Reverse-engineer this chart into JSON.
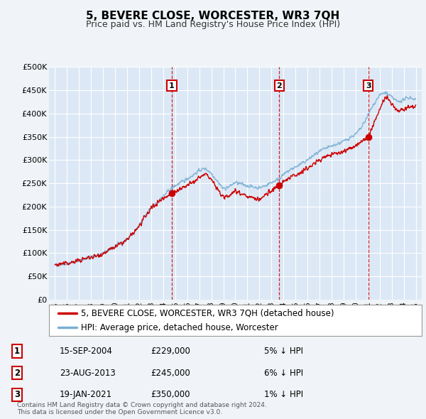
{
  "title": "5, BEVERE CLOSE, WORCESTER, WR3 7QH",
  "subtitle": "Price paid vs. HM Land Registry's House Price Index (HPI)",
  "background_color": "#f0f4f8",
  "plot_bg_color": "#dce8f5",
  "grid_color": "#ffffff",
  "hpi_line_color": "#7aafd4",
  "price_line_color": "#cc0000",
  "purchases": [
    {
      "date_x": 2004.71,
      "price": 229000,
      "label": "1"
    },
    {
      "date_x": 2013.65,
      "price": 245000,
      "label": "2"
    },
    {
      "date_x": 2021.05,
      "price": 350000,
      "label": "3"
    }
  ],
  "purchase_info": [
    {
      "num": "1",
      "date": "15-SEP-2004",
      "price": "£229,000",
      "pct": "5% ↓ HPI"
    },
    {
      "num": "2",
      "date": "23-AUG-2013",
      "price": "£245,000",
      "pct": "6% ↓ HPI"
    },
    {
      "num": "3",
      "date": "19-JAN-2021",
      "price": "£350,000",
      "pct": "1% ↓ HPI"
    }
  ],
  "legend_entries": [
    "5, BEVERE CLOSE, WORCESTER, WR3 7QH (detached house)",
    "HPI: Average price, detached house, Worcester"
  ],
  "footer": "Contains HM Land Registry data © Crown copyright and database right 2024.\nThis data is licensed under the Open Government Licence v3.0.",
  "ylim": [
    0,
    500000
  ],
  "yticks": [
    0,
    50000,
    100000,
    150000,
    200000,
    250000,
    300000,
    350000,
    400000,
    450000,
    500000
  ],
  "xlim": [
    1994.5,
    2025.5
  ],
  "xticks": [
    1995,
    1996,
    1997,
    1998,
    1999,
    2000,
    2001,
    2002,
    2003,
    2004,
    2005,
    2006,
    2007,
    2008,
    2009,
    2010,
    2011,
    2012,
    2013,
    2014,
    2015,
    2016,
    2017,
    2018,
    2019,
    2020,
    2021,
    2022,
    2023,
    2024,
    2025
  ],
  "hpi_points": [
    [
      1995.0,
      75000
    ],
    [
      1995.5,
      76000
    ],
    [
      1996.0,
      78000
    ],
    [
      1996.5,
      80000
    ],
    [
      1997.0,
      84000
    ],
    [
      1997.5,
      88000
    ],
    [
      1998.0,
      92000
    ],
    [
      1998.5,
      95000
    ],
    [
      1999.0,
      100000
    ],
    [
      1999.5,
      107000
    ],
    [
      2000.0,
      115000
    ],
    [
      2000.5,
      122000
    ],
    [
      2001.0,
      130000
    ],
    [
      2001.5,
      143000
    ],
    [
      2002.0,
      160000
    ],
    [
      2002.5,
      180000
    ],
    [
      2003.0,
      198000
    ],
    [
      2003.5,
      210000
    ],
    [
      2004.0,
      222000
    ],
    [
      2004.5,
      235000
    ],
    [
      2005.0,
      245000
    ],
    [
      2005.5,
      252000
    ],
    [
      2006.0,
      260000
    ],
    [
      2006.5,
      268000
    ],
    [
      2007.0,
      278000
    ],
    [
      2007.5,
      282000
    ],
    [
      2008.0,
      272000
    ],
    [
      2008.5,
      255000
    ],
    [
      2009.0,
      238000
    ],
    [
      2009.5,
      243000
    ],
    [
      2010.0,
      252000
    ],
    [
      2010.5,
      248000
    ],
    [
      2011.0,
      245000
    ],
    [
      2011.5,
      242000
    ],
    [
      2012.0,
      240000
    ],
    [
      2012.5,
      245000
    ],
    [
      2013.0,
      252000
    ],
    [
      2013.5,
      258000
    ],
    [
      2014.0,
      268000
    ],
    [
      2014.5,
      278000
    ],
    [
      2015.0,
      285000
    ],
    [
      2015.5,
      292000
    ],
    [
      2016.0,
      300000
    ],
    [
      2016.5,
      310000
    ],
    [
      2017.0,
      318000
    ],
    [
      2017.5,
      325000
    ],
    [
      2018.0,
      330000
    ],
    [
      2018.5,
      335000
    ],
    [
      2019.0,
      340000
    ],
    [
      2019.5,
      348000
    ],
    [
      2020.0,
      355000
    ],
    [
      2020.5,
      370000
    ],
    [
      2021.0,
      395000
    ],
    [
      2021.5,
      420000
    ],
    [
      2022.0,
      440000
    ],
    [
      2022.5,
      445000
    ],
    [
      2023.0,
      435000
    ],
    [
      2023.5,
      425000
    ],
    [
      2024.0,
      430000
    ],
    [
      2024.5,
      435000
    ],
    [
      2025.0,
      430000
    ]
  ],
  "price_points": [
    [
      1995.0,
      75000
    ],
    [
      1995.5,
      76500
    ],
    [
      1996.0,
      78000
    ],
    [
      1996.5,
      80500
    ],
    [
      1997.0,
      84000
    ],
    [
      1997.5,
      88000
    ],
    [
      1998.0,
      91000
    ],
    [
      1998.5,
      94000
    ],
    [
      1999.0,
      99000
    ],
    [
      1999.5,
      106000
    ],
    [
      2000.0,
      113000
    ],
    [
      2000.5,
      120000
    ],
    [
      2001.0,
      128000
    ],
    [
      2001.5,
      142000
    ],
    [
      2002.0,
      158000
    ],
    [
      2002.5,
      177000
    ],
    [
      2003.0,
      196000
    ],
    [
      2003.5,
      208000
    ],
    [
      2004.0,
      218000
    ],
    [
      2004.71,
      229000
    ],
    [
      2005.0,
      232000
    ],
    [
      2005.5,
      238000
    ],
    [
      2006.0,
      245000
    ],
    [
      2006.5,
      252000
    ],
    [
      2007.0,
      262000
    ],
    [
      2007.5,
      270000
    ],
    [
      2008.0,
      258000
    ],
    [
      2008.5,
      238000
    ],
    [
      2009.0,
      218000
    ],
    [
      2009.5,
      225000
    ],
    [
      2010.0,
      235000
    ],
    [
      2010.5,
      228000
    ],
    [
      2011.0,
      222000
    ],
    [
      2011.5,
      218000
    ],
    [
      2012.0,
      215000
    ],
    [
      2012.5,
      225000
    ],
    [
      2013.0,
      235000
    ],
    [
      2013.65,
      245000
    ],
    [
      2014.0,
      252000
    ],
    [
      2014.5,
      262000
    ],
    [
      2015.0,
      268000
    ],
    [
      2015.5,
      275000
    ],
    [
      2016.0,
      282000
    ],
    [
      2016.5,
      292000
    ],
    [
      2017.0,
      300000
    ],
    [
      2017.5,
      308000
    ],
    [
      2018.0,
      312000
    ],
    [
      2018.5,
      315000
    ],
    [
      2019.0,
      318000
    ],
    [
      2019.5,
      325000
    ],
    [
      2020.0,
      330000
    ],
    [
      2020.5,
      340000
    ],
    [
      2021.05,
      350000
    ],
    [
      2021.5,
      378000
    ],
    [
      2022.0,
      410000
    ],
    [
      2022.5,
      435000
    ],
    [
      2023.0,
      420000
    ],
    [
      2023.5,
      405000
    ],
    [
      2024.0,
      410000
    ],
    [
      2024.5,
      415000
    ],
    [
      2025.0,
      418000
    ]
  ]
}
